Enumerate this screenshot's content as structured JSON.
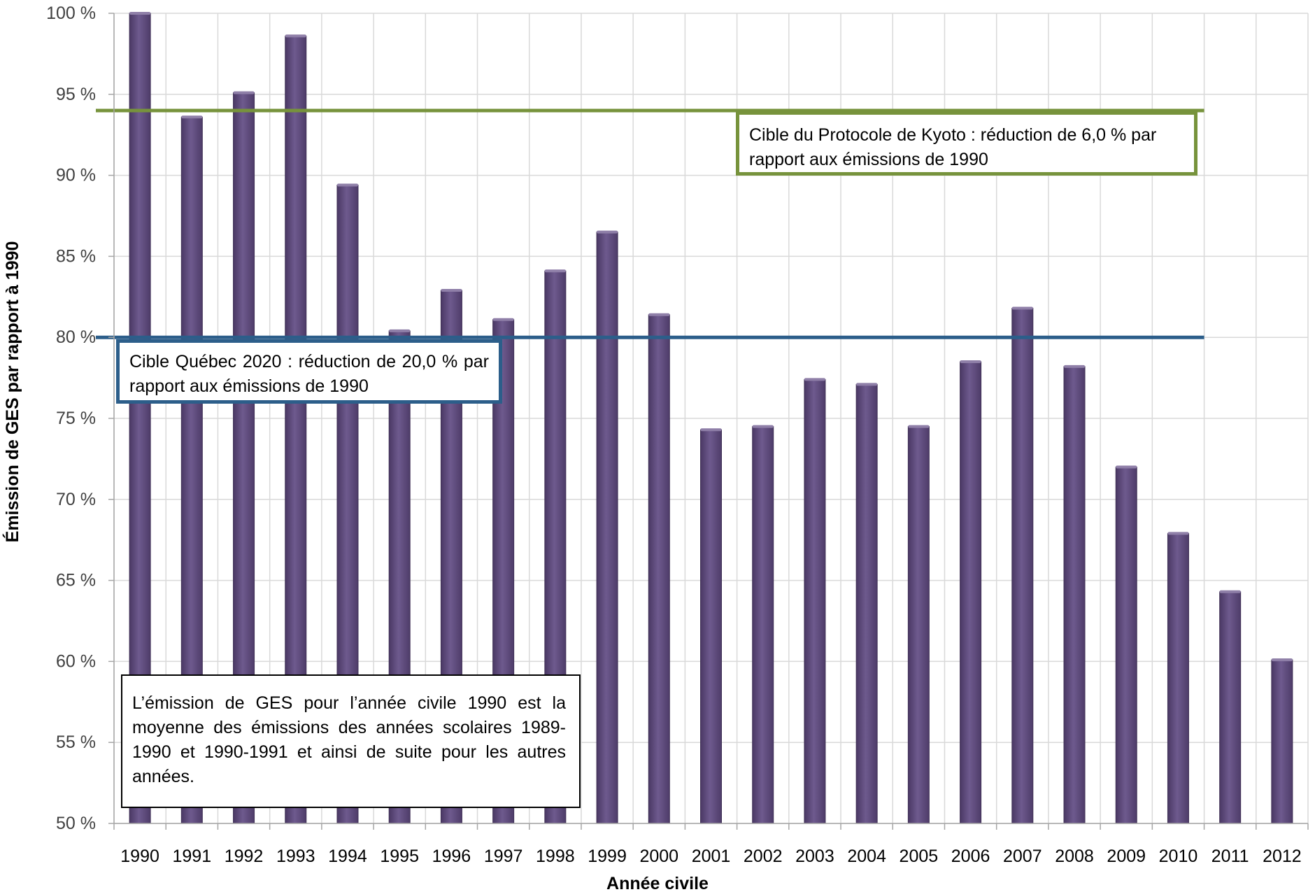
{
  "chart_data": {
    "type": "bar",
    "xlabel": "Année civile",
    "ylabel": "Émission de GES par rapport à 1990",
    "ylim": [
      50,
      100
    ],
    "y_ticks": [
      50,
      55,
      60,
      65,
      70,
      75,
      80,
      85,
      90,
      95,
      100
    ],
    "y_tick_labels": [
      "50 %",
      "55 %",
      "60 %",
      "65 %",
      "70 %",
      "75 %",
      "80 %",
      "85 %",
      "90 %",
      "95 %",
      "100 %"
    ],
    "grid": "vertical and horizontal",
    "categories": [
      "1990",
      "1991",
      "1992",
      "1993",
      "1994",
      "1995",
      "1996",
      "1997",
      "1998",
      "1999",
      "2000",
      "2001",
      "2002",
      "2003",
      "2004",
      "2005",
      "2006",
      "2007",
      "2008",
      "2009",
      "2010",
      "2011",
      "2012"
    ],
    "values": [
      100.0,
      93.6,
      95.1,
      98.6,
      89.4,
      80.4,
      82.9,
      81.1,
      84.1,
      86.5,
      81.4,
      74.3,
      74.5,
      77.4,
      77.1,
      74.5,
      78.5,
      81.8,
      78.2,
      72.0,
      67.9,
      64.3,
      60.1
    ],
    "reference_lines": [
      {
        "value": 94.0,
        "color": "#77933c",
        "from": "1990",
        "to": "2010"
      },
      {
        "value": 80.0,
        "color": "#2c5e8a",
        "from": "1990",
        "to": "2010"
      }
    ],
    "bar_color": "#604a7b"
  },
  "annotations": {
    "kyoto": "Cible du Protocole de Kyoto : réduction de 6,0 % par rapport aux émissions de 1990",
    "quebec": "Cible Québec 2020 : réduction de 20,0 % par rapport aux émissions de 1990",
    "method": "L’émission de GES pour l’année civile 1990 est la moyenne des émissions des années scolaires 1989-1990 et 1990-1991 et ainsi de suite pour les autres années."
  }
}
